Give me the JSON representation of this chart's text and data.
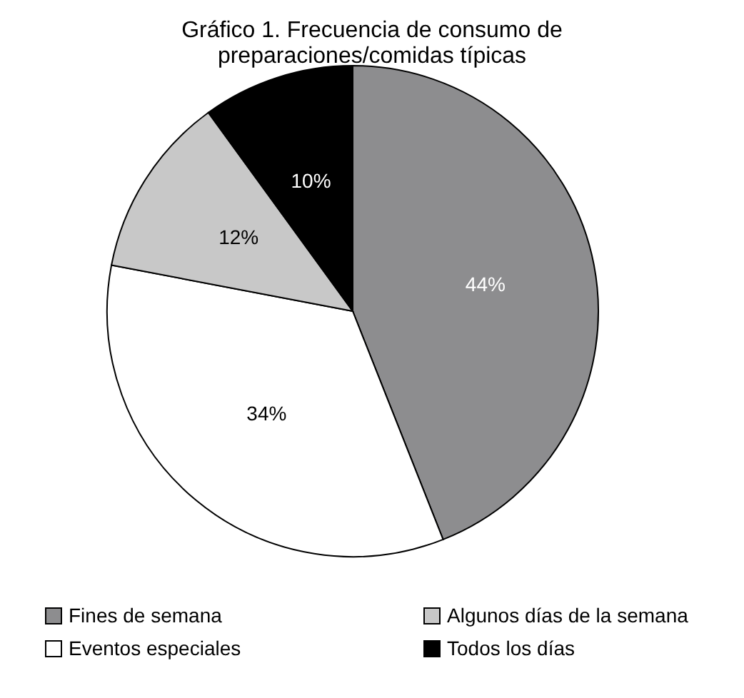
{
  "chart_data": {
    "type": "pie",
    "title": "Gráfico 1. Frecuencia de consumo de preparaciones/comidas típicas",
    "categories": [
      "Fines de semana",
      "Eventos especiales",
      "Algunos días de la semana",
      "Todos los días"
    ],
    "values": [
      44,
      34,
      12,
      10
    ],
    "colors": [
      "#8d8d8f",
      "#ffffff",
      "#c8c8c8",
      "#000000"
    ],
    "value_labels": [
      "44%",
      "34%",
      "12%",
      "10%"
    ],
    "legend": "bottom"
  }
}
